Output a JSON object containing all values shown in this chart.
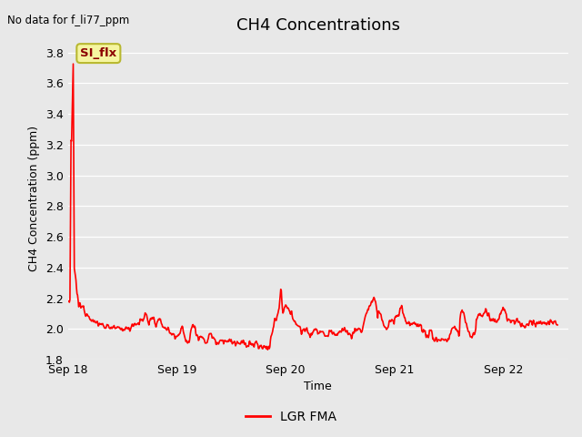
{
  "title": "CH4 Concentrations",
  "xlabel": "Time",
  "ylabel": "CH4 Concentration (ppm)",
  "top_left_text": "No data for f_li77_ppm",
  "legend_label": "LGR FMA",
  "legend_color": "#ff0000",
  "line_color": "#ff0000",
  "line_width": 1.2,
  "bg_color": "#e8e8e8",
  "fig_bg_color": "#e8e8e8",
  "ylim": [
    1.8,
    3.9
  ],
  "yticks": [
    1.8,
    2.0,
    2.2,
    2.4,
    2.6,
    2.8,
    3.0,
    3.2,
    3.4,
    3.6,
    3.8
  ],
  "xlim": [
    0,
    4.6
  ],
  "xtick_positions": [
    0,
    1,
    2,
    3,
    4
  ],
  "xtick_labels": [
    "Sep 18",
    "Sep 19",
    "Sep 20",
    "Sep 21",
    "Sep 22"
  ],
  "annotation_text": "SI_flx",
  "annotation_color": "#8B0000",
  "annotation_bg": "#f5f5a0",
  "annotation_border": "#b8b830",
  "title_fontsize": 13,
  "label_fontsize": 9,
  "tick_fontsize": 9
}
